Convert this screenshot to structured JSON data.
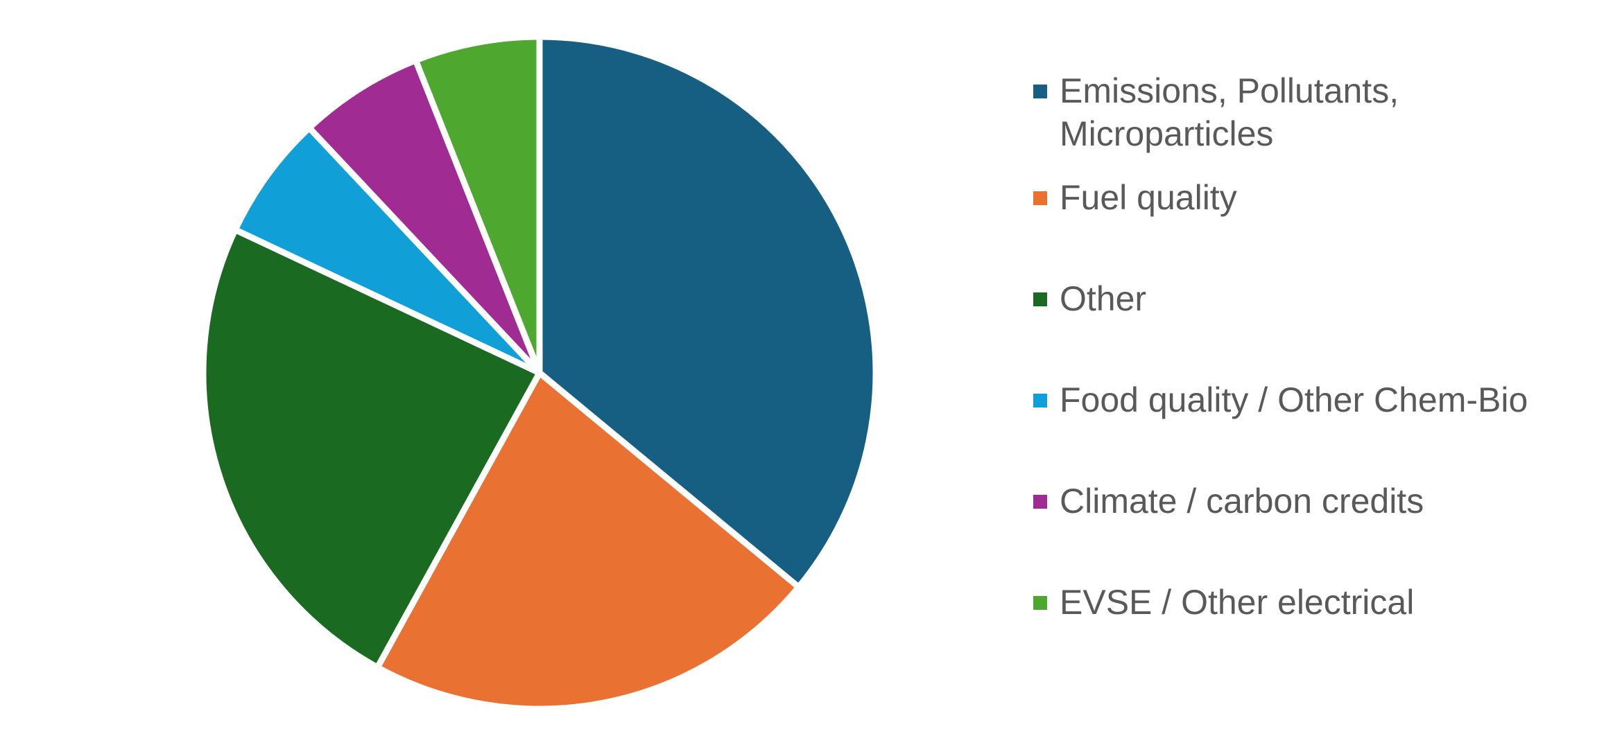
{
  "chart_data": {
    "type": "pie",
    "title": "",
    "categories": [
      "Emissions, Pollutants, Microparticles",
      "Fuel quality",
      "Other",
      "Food quality / Other Chem-Bio",
      "Climate / carbon credits",
      "EVSE / Other electrical"
    ],
    "values": [
      36,
      22,
      24,
      6,
      6,
      6
    ],
    "colors": [
      "#175F82",
      "#E97132",
      "#1B6A22",
      "#119FD8",
      "#A02B93",
      "#4EA72E"
    ],
    "legend_position": "right",
    "start_angle": "top",
    "direction": "clockwise"
  },
  "legend": {
    "items": [
      {
        "label": "Emissions, Pollutants, Microparticles",
        "color": "#175F82"
      },
      {
        "label": "Fuel quality",
        "color": "#E97132"
      },
      {
        "label": "Other",
        "color": "#1B6A22"
      },
      {
        "label": "Food quality / Other Chem-Bio",
        "color": "#119FD8"
      },
      {
        "label": "Climate / carbon credits",
        "color": "#A02B93"
      },
      {
        "label": "EVSE / Other electrical",
        "color": "#4EA72E"
      }
    ]
  }
}
